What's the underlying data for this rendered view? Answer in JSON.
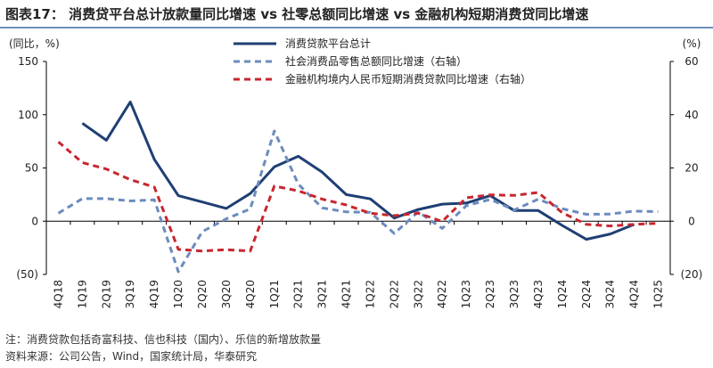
{
  "title": "图表17：  消费贷平台总计放款量同比增速 vs 社零总额同比增速 vs 金融机构短期消费贷同比增速",
  "notes": {
    "note": "注：消费贷款包括奇富科技、信也科技（国内）、乐信的新增放款量",
    "source": "资料来源：公司公告，Wind，国家统计局，华泰研究"
  },
  "colors": {
    "navy": "#1f3f74",
    "steel": "#6b8cbd",
    "red": "#c8262f",
    "axis": "#000000"
  },
  "chart_data": {
    "type": "line",
    "left_axis": {
      "unit_label": "(同比，%)",
      "ylim": [
        -50,
        150
      ],
      "ticks": [
        150,
        100,
        50,
        0,
        -50
      ],
      "tick_labels": [
        "150",
        "100",
        "50",
        "0",
        "(50)"
      ]
    },
    "right_axis": {
      "unit_label": "(%)",
      "ylim": [
        -20,
        60
      ],
      "ticks": [
        60,
        40,
        20,
        0,
        -20
      ],
      "tick_labels": [
        "60",
        "40",
        "20",
        "0",
        "(20)"
      ]
    },
    "categories": [
      "4Q18",
      "1Q19",
      "2Q19",
      "3Q19",
      "4Q19",
      "1Q20",
      "2Q20",
      "3Q20",
      "4Q20",
      "1Q21",
      "2Q21",
      "3Q21",
      "4Q21",
      "1Q22",
      "2Q22",
      "3Q22",
      "4Q22",
      "1Q23",
      "2Q23",
      "3Q23",
      "4Q23",
      "1Q24",
      "2Q24",
      "3Q24",
      "4Q24",
      "1Q25"
    ],
    "grid": false,
    "legend_position": "top-center",
    "series": [
      {
        "name": "消费贷款平台总计",
        "axis": "left",
        "style": "solid",
        "values": [
          null,
          92,
          76,
          112,
          58,
          24,
          18,
          12,
          26,
          51,
          61,
          46,
          25,
          21,
          3,
          11,
          16,
          17,
          24,
          10,
          10,
          -4,
          -17,
          -12,
          -3,
          null
        ]
      },
      {
        "name": "社会消费品零售总额同比增速（右轴）",
        "axis": "right",
        "style": "dashed",
        "values": [
          3,
          8.5,
          8.5,
          7.6,
          8,
          -19,
          -3.9,
          0.9,
          4.6,
          33.9,
          13.9,
          5,
          3.5,
          3.3,
          -4.6,
          3.5,
          -2.7,
          5.8,
          8.2,
          4.2,
          8.3,
          4.7,
          2.6,
          2.7,
          3.8,
          3.6
        ]
      },
      {
        "name": "金融机构境内人民币短期消费贷款同比增速（右轴）",
        "axis": "right",
        "style": "dashed",
        "values": [
          29.8,
          22,
          19.6,
          15.6,
          12.8,
          -10.6,
          -11.2,
          -10.7,
          -11.2,
          13.2,
          11.4,
          8.3,
          6.1,
          3,
          2.1,
          3,
          -0.1,
          8.8,
          9.9,
          9.7,
          10.8,
          3.2,
          -1.2,
          -1.8,
          -1.2,
          -0.8
        ]
      }
    ]
  }
}
